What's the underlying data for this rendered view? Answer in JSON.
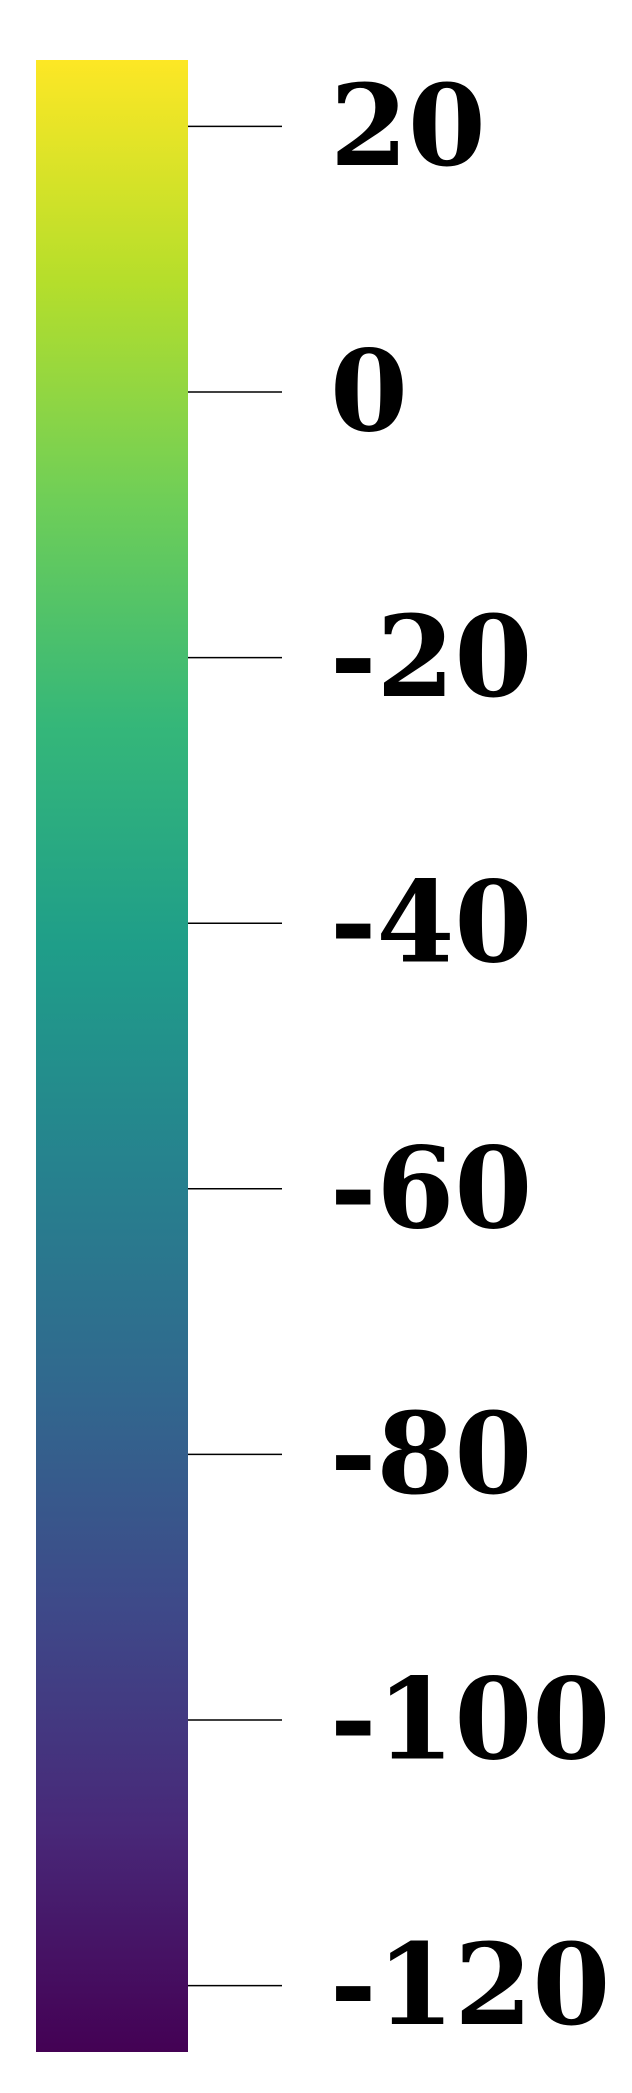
{
  "chart_data": {
    "type": "heatmap",
    "colormap": "viridis",
    "colorbar_range": [
      -125,
      25
    ],
    "ticks": [
      20,
      0,
      -20,
      -40,
      -60,
      -80,
      -100,
      -120
    ],
    "tick_labels": [
      "20",
      "0",
      "-20",
      "-40",
      "-60",
      "-80",
      "-100",
      "-120"
    ]
  },
  "colors": {
    "viridis": [
      "#440154",
      "#482878",
      "#3e4989",
      "#31688e",
      "#26828e",
      "#1f9e89",
      "#35b779",
      "#6ece58",
      "#b5de2b",
      "#fde725"
    ],
    "tick_line": "#000000",
    "label": "#000000"
  }
}
